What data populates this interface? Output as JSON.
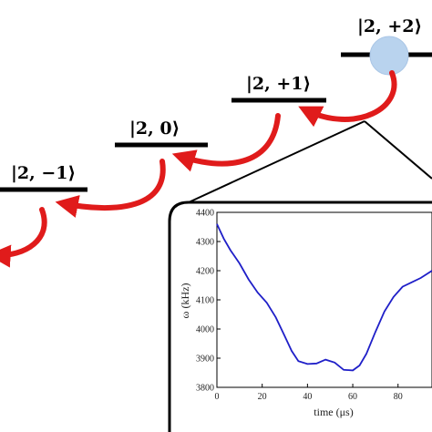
{
  "levels": [
    {
      "label": "|2, −1⟩"
    },
    {
      "label": "|2, 0⟩"
    },
    {
      "label": "|2, +1⟩"
    },
    {
      "label": "|2, +2⟩"
    }
  ],
  "colors": {
    "level_line": "#000000",
    "arrow": "#e01b1b",
    "atom": "#b9d3ee",
    "atom_stroke": "#aac6e6",
    "curve": "#1f1fc8",
    "inset_frame": "#000000"
  },
  "inset": {
    "chart_data": {
      "type": "line",
      "xlabel": "time (μs)",
      "ylabel": "ω (kHz)",
      "xlim": [
        0,
        95
      ],
      "ylim": [
        3800,
        4400
      ],
      "xticks": [
        0,
        20,
        40,
        60,
        80
      ],
      "yticks": [
        3800,
        3900,
        4000,
        4100,
        4200,
        4300,
        4400
      ],
      "series": [
        {
          "x": [
            0,
            3,
            6,
            10,
            14,
            18,
            22,
            26,
            30,
            33,
            36,
            40,
            44,
            48,
            52,
            56,
            60,
            63,
            66,
            70,
            74,
            78,
            82,
            86,
            90,
            93,
            95
          ],
          "y": [
            4360,
            4310,
            4270,
            4225,
            4170,
            4125,
            4090,
            4040,
            3975,
            3925,
            3890,
            3880,
            3882,
            3895,
            3885,
            3860,
            3858,
            3875,
            3915,
            3990,
            4060,
            4110,
            4145,
            4160,
            4175,
            4190,
            4200
          ]
        }
      ]
    }
  }
}
